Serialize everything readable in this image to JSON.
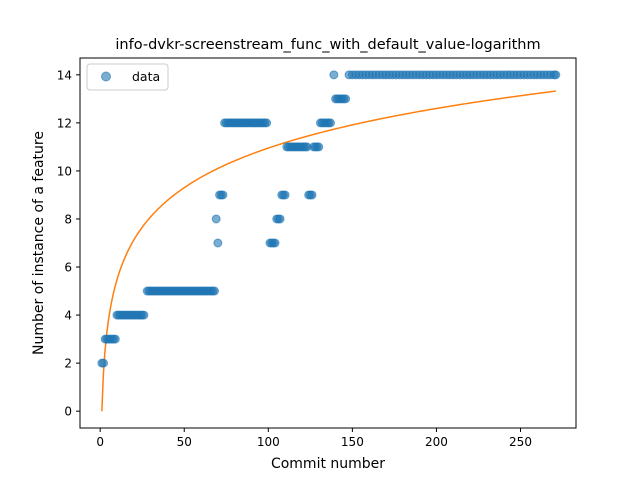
{
  "chart_data": {
    "type": "scatter",
    "title": "info-dvkr-screenstream_func_with_default_value-logarithm",
    "xlabel": "Commit number",
    "ylabel": "Number of instance of a feature",
    "xlim": [
      -12,
      283
    ],
    "ylim": [
      -0.7,
      14.7
    ],
    "xticks": [
      0,
      50,
      100,
      150,
      200,
      250
    ],
    "yticks": [
      0,
      2,
      4,
      6,
      8,
      10,
      12,
      14
    ],
    "grid": false,
    "legend": {
      "position": "top-left",
      "entries": [
        "data"
      ]
    },
    "colors": {
      "points": "#1f77b4",
      "fit": "#ff7f0e"
    },
    "series": [
      {
        "name": "data",
        "kind": "scatter",
        "points": [
          [
            1,
            2
          ],
          [
            2,
            2
          ],
          [
            3,
            3
          ],
          [
            4,
            3
          ],
          [
            5,
            3
          ],
          [
            6,
            3
          ],
          [
            7,
            3
          ],
          [
            8,
            3
          ],
          [
            9,
            3
          ],
          [
            10,
            4
          ],
          [
            11,
            4
          ],
          [
            12,
            4
          ],
          [
            13,
            4
          ],
          [
            14,
            4
          ],
          [
            15,
            4
          ],
          [
            16,
            4
          ],
          [
            17,
            4
          ],
          [
            18,
            4
          ],
          [
            19,
            4
          ],
          [
            20,
            4
          ],
          [
            21,
            4
          ],
          [
            22,
            4
          ],
          [
            23,
            4
          ],
          [
            24,
            4
          ],
          [
            25,
            4
          ],
          [
            26,
            4
          ],
          [
            28,
            5
          ],
          [
            29,
            5
          ],
          [
            30,
            5
          ],
          [
            31,
            5
          ],
          [
            32,
            5
          ],
          [
            33,
            5
          ],
          [
            34,
            5
          ],
          [
            35,
            5
          ],
          [
            36,
            5
          ],
          [
            37,
            5
          ],
          [
            38,
            5
          ],
          [
            39,
            5
          ],
          [
            40,
            5
          ],
          [
            41,
            5
          ],
          [
            42,
            5
          ],
          [
            43,
            5
          ],
          [
            44,
            5
          ],
          [
            45,
            5
          ],
          [
            46,
            5
          ],
          [
            47,
            5
          ],
          [
            48,
            5
          ],
          [
            49,
            5
          ],
          [
            50,
            5
          ],
          [
            51,
            5
          ],
          [
            52,
            5
          ],
          [
            53,
            5
          ],
          [
            54,
            5
          ],
          [
            55,
            5
          ],
          [
            56,
            5
          ],
          [
            57,
            5
          ],
          [
            58,
            5
          ],
          [
            59,
            5
          ],
          [
            60,
            5
          ],
          [
            61,
            5
          ],
          [
            62,
            5
          ],
          [
            63,
            5
          ],
          [
            64,
            5
          ],
          [
            65,
            5
          ],
          [
            66,
            5
          ],
          [
            67,
            5
          ],
          [
            68,
            5
          ],
          [
            69,
            8
          ],
          [
            70,
            7
          ],
          [
            71,
            9
          ],
          [
            72,
            9
          ],
          [
            73,
            9
          ],
          [
            74,
            12
          ],
          [
            75,
            12
          ],
          [
            76,
            12
          ],
          [
            77,
            12
          ],
          [
            78,
            12
          ],
          [
            79,
            12
          ],
          [
            80,
            12
          ],
          [
            81,
            12
          ],
          [
            82,
            12
          ],
          [
            83,
            12
          ],
          [
            84,
            12
          ],
          [
            85,
            12
          ],
          [
            86,
            12
          ],
          [
            87,
            12
          ],
          [
            88,
            12
          ],
          [
            89,
            12
          ],
          [
            90,
            12
          ],
          [
            91,
            12
          ],
          [
            92,
            12
          ],
          [
            93,
            12
          ],
          [
            94,
            12
          ],
          [
            95,
            12
          ],
          [
            96,
            12
          ],
          [
            97,
            12
          ],
          [
            98,
            12
          ],
          [
            99,
            12
          ],
          [
            101,
            7
          ],
          [
            102,
            7
          ],
          [
            103,
            7
          ],
          [
            104,
            7
          ],
          [
            105,
            8
          ],
          [
            106,
            8
          ],
          [
            107,
            8
          ],
          [
            108,
            9
          ],
          [
            109,
            9
          ],
          [
            110,
            9
          ],
          [
            111,
            11
          ],
          [
            112,
            11
          ],
          [
            113,
            11
          ],
          [
            114,
            11
          ],
          [
            115,
            11
          ],
          [
            116,
            11
          ],
          [
            117,
            11
          ],
          [
            118,
            11
          ],
          [
            119,
            11
          ],
          [
            120,
            11
          ],
          [
            121,
            11
          ],
          [
            122,
            11
          ],
          [
            123,
            11
          ],
          [
            124,
            9
          ],
          [
            125,
            9
          ],
          [
            126,
            9
          ],
          [
            127,
            11
          ],
          [
            128,
            11
          ],
          [
            129,
            11
          ],
          [
            130,
            11
          ],
          [
            131,
            12
          ],
          [
            132,
            12
          ],
          [
            133,
            12
          ],
          [
            134,
            12
          ],
          [
            135,
            12
          ],
          [
            136,
            12
          ],
          [
            137,
            12
          ],
          [
            139,
            14
          ],
          [
            140,
            13
          ],
          [
            141,
            13
          ],
          [
            142,
            13
          ],
          [
            143,
            13
          ],
          [
            144,
            13
          ],
          [
            145,
            13
          ],
          [
            146,
            13
          ],
          [
            148,
            14
          ],
          [
            150,
            14
          ],
          [
            152,
            14
          ],
          [
            154,
            14
          ],
          [
            156,
            14
          ],
          [
            158,
            14
          ],
          [
            160,
            14
          ],
          [
            162,
            14
          ],
          [
            164,
            14
          ],
          [
            166,
            14
          ],
          [
            168,
            14
          ],
          [
            170,
            14
          ],
          [
            172,
            14
          ],
          [
            174,
            14
          ],
          [
            176,
            14
          ],
          [
            178,
            14
          ],
          [
            180,
            14
          ],
          [
            182,
            14
          ],
          [
            184,
            14
          ],
          [
            186,
            14
          ],
          [
            188,
            14
          ],
          [
            190,
            14
          ],
          [
            192,
            14
          ],
          [
            194,
            14
          ],
          [
            196,
            14
          ],
          [
            198,
            14
          ],
          [
            200,
            14
          ],
          [
            202,
            14
          ],
          [
            204,
            14
          ],
          [
            206,
            14
          ],
          [
            208,
            14
          ],
          [
            210,
            14
          ],
          [
            212,
            14
          ],
          [
            214,
            14
          ],
          [
            216,
            14
          ],
          [
            218,
            14
          ],
          [
            220,
            14
          ],
          [
            222,
            14
          ],
          [
            224,
            14
          ],
          [
            226,
            14
          ],
          [
            228,
            14
          ],
          [
            230,
            14
          ],
          [
            232,
            14
          ],
          [
            234,
            14
          ],
          [
            236,
            14
          ],
          [
            238,
            14
          ],
          [
            240,
            14
          ],
          [
            242,
            14
          ],
          [
            244,
            14
          ],
          [
            246,
            14
          ],
          [
            248,
            14
          ],
          [
            250,
            14
          ],
          [
            252,
            14
          ],
          [
            254,
            14
          ],
          [
            256,
            14
          ],
          [
            258,
            14
          ],
          [
            260,
            14
          ],
          [
            262,
            14
          ],
          [
            264,
            14
          ],
          [
            266,
            14
          ],
          [
            268,
            14
          ],
          [
            270,
            14
          ],
          [
            271,
            14
          ]
        ]
      },
      {
        "kind": "line",
        "function": "logarithm",
        "params": {
          "a": 2.378,
          "b": 0
        },
        "x_range": [
          1,
          271
        ]
      }
    ]
  }
}
